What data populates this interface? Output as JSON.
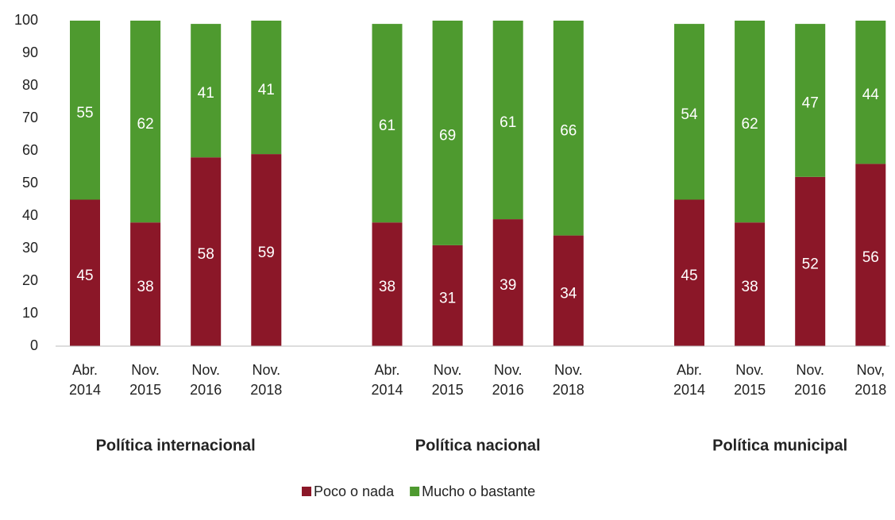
{
  "chart_data": {
    "type": "bar",
    "stacked": true,
    "categories": [
      "Abr. 2014",
      "Nov. 2015",
      "Nov. 2016",
      "Nov. 2018",
      "Abr. 2014",
      "Nov. 2015",
      "Nov. 2016",
      "Nov. 2018",
      "Abr. 2014",
      "Nov. 2015",
      "Nov. 2016",
      "Nov, 2018"
    ],
    "groups": [
      "Política internacional",
      "Política nacional",
      "Política municipal"
    ],
    "series": [
      {
        "name": "Poco o nada",
        "color": "#8b1728",
        "values": [
          45,
          38,
          58,
          59,
          38,
          31,
          39,
          34,
          45,
          38,
          52,
          56
        ]
      },
      {
        "name": "Mucho o bastante",
        "color": "#4e9a2f",
        "values": [
          55,
          62,
          41,
          41,
          61,
          69,
          61,
          66,
          54,
          62,
          47,
          44
        ]
      }
    ],
    "ylim": [
      0,
      100
    ],
    "yticks": [
      0,
      10,
      20,
      30,
      40,
      50,
      60,
      70,
      80,
      90,
      100
    ],
    "grid": false,
    "legend": "bottom"
  }
}
